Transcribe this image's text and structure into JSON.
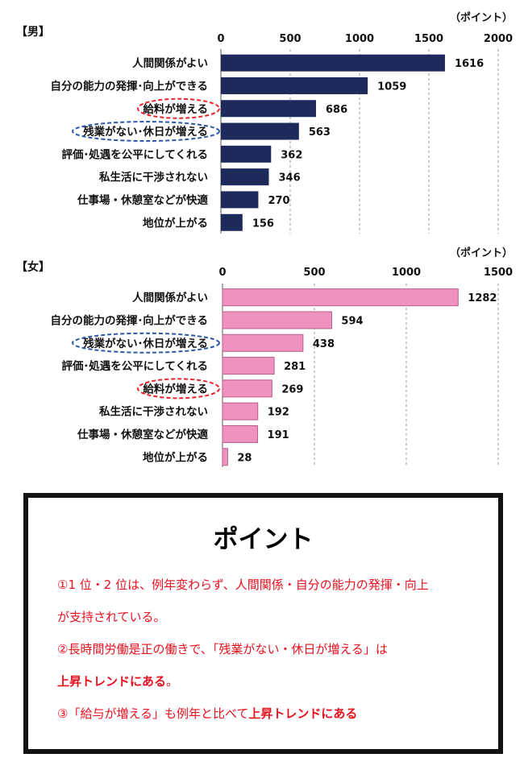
{
  "colors": {
    "male_bar": "#1f2a5c",
    "female_bar": "#ee92bf",
    "female_bar_stroke": "#b85c8a",
    "highlight_red": "#e8262c",
    "highlight_blue": "#2a5aa8",
    "point_text": "#e8101e"
  },
  "chart_data": [
    {
      "type": "bar",
      "orientation": "horizontal",
      "panel_label": "【男】",
      "unit_label": "（ポイント）",
      "xlim": [
        0,
        2000
      ],
      "ticks": [
        "0",
        "500",
        "1000",
        "1500",
        "2000"
      ],
      "grid": "dashed vertical",
      "categories": [
        "人間関係がよい",
        "自分の能力の発揮･向上ができる",
        "給料が増える",
        "残業がない･休日が増える",
        "評価･処遇を公平にしてくれる",
        "私生活に干渉されない",
        "仕事場・休憩室などが快適",
        "地位が上がる"
      ],
      "values": [
        1616,
        1059,
        686,
        563,
        362,
        346,
        270,
        156
      ],
      "highlighted": {
        "給料が増える": "red",
        "残業がない･休日が増える": "blue"
      }
    },
    {
      "type": "bar",
      "orientation": "horizontal",
      "panel_label": "【女】",
      "unit_label": "（ポイント）",
      "xlim": [
        0,
        1500
      ],
      "ticks": [
        "0",
        "500",
        "1000",
        "1500"
      ],
      "grid": "dashed vertical",
      "categories": [
        "人間関係がよい",
        "自分の能力の発揮･向上ができる",
        "残業がない･休日が増える",
        "評価･処遇を公平にしてくれる",
        "給料が増える",
        "私生活に干渉されない",
        "仕事場・休憩室などが快適",
        "地位が上がる"
      ],
      "values": [
        1282,
        594,
        438,
        281,
        269,
        192,
        191,
        28
      ],
      "highlighted": {
        "残業がない･休日が増える": "blue",
        "給料が増える": "red"
      }
    }
  ],
  "point": {
    "title": "ポイント",
    "line1": "①1 位・2 位は、例年変わらず、人間関係・自分の能力の発揮・向上",
    "line2": "が支持されている。",
    "line3": "②長時間労働是正の働きで、「残業がない・休日が増える」は",
    "line4_bold": "上昇トレンドにある",
    "line4_tail": "。",
    "line5_prefix": "③「給与が増える」も例年と比べて",
    "line5_bold": "上昇トレンドにある"
  }
}
